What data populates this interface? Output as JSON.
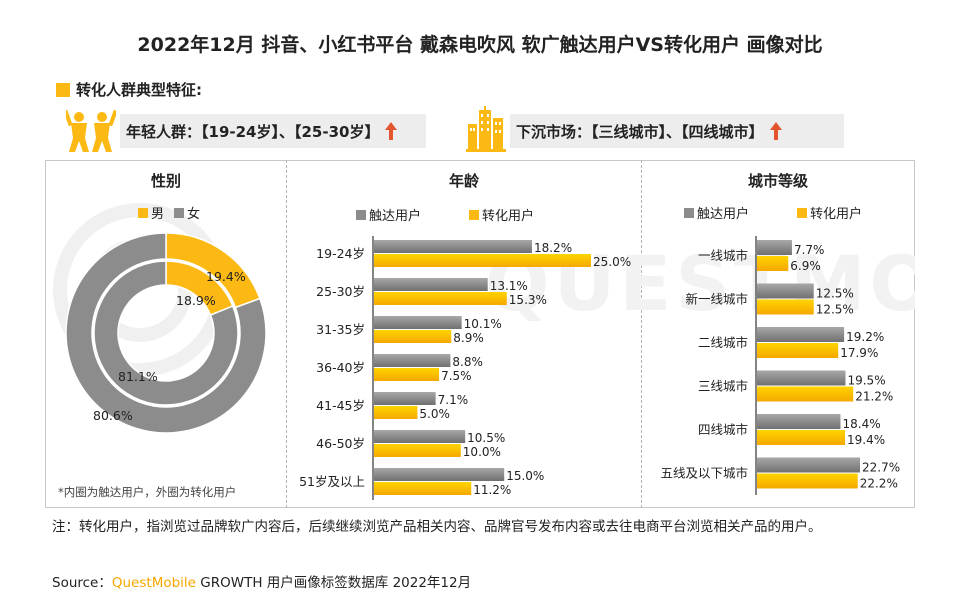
{
  "title": "2022年12月 抖音、小红书平台 戴森电吹风 软广触达用户VS转化用户 画像对比",
  "feature_heading": "转化人群典型特征:",
  "feature_left": {
    "text": "年轻人群：【19-24岁】、【25-30岁】",
    "arrow": "↑"
  },
  "feature_right": {
    "text": "下沉市场：【三线城市】、【四线城市】",
    "arrow": "↑"
  },
  "watermark": "QUESTMOBILE",
  "colors": {
    "accent": "#fdb913",
    "gray": "#8c8c8c",
    "arrow": "#e4572e"
  },
  "gender_panel": {
    "title": "性别",
    "legend": [
      "男",
      "女"
    ],
    "footnote": "*内圈为触达用户，外圈为转化用户"
  },
  "age_panel": {
    "title": "年龄",
    "legend": [
      "触达用户",
      "转化用户"
    ]
  },
  "city_panel": {
    "title": "城市等级",
    "legend": [
      "触达用户",
      "转化用户"
    ]
  },
  "chart_data": [
    {
      "type": "pie",
      "title": "性别",
      "categories": [
        "男",
        "女"
      ],
      "series": [
        {
          "values": [
            18.9,
            81.1
          ],
          "labels": [
            "18.9%",
            "81.1%"
          ]
        },
        {
          "values": [
            19.4,
            80.6
          ],
          "labels": [
            "19.4%",
            "80.6%"
          ]
        }
      ],
      "legend_position": "top"
    },
    {
      "type": "bar",
      "title": "年龄",
      "categories": [
        "19-24岁",
        "25-30岁",
        "31-35岁",
        "36-40岁",
        "41-45岁",
        "46-50岁",
        "51岁及以上"
      ],
      "series": [
        {
          "name": "触达用户",
          "values": [
            18.2,
            13.1,
            10.1,
            8.8,
            7.1,
            10.5,
            15.0
          ],
          "labels": [
            "18.2%",
            "13.1%",
            "10.1%",
            "8.8%",
            "7.1%",
            "10.5%",
            "15.0%"
          ]
        },
        {
          "name": "转化用户",
          "values": [
            25.0,
            15.3,
            8.9,
            7.5,
            5.0,
            10.0,
            11.2
          ],
          "labels": [
            "25.0%",
            "15.3%",
            "8.9%",
            "7.5%",
            "5.0%",
            "10.0%",
            "11.2%"
          ]
        }
      ],
      "xlim": [
        0,
        25
      ],
      "legend_position": "top"
    },
    {
      "type": "bar",
      "title": "城市等级",
      "categories": [
        "一线城市",
        "新一线城市",
        "二线城市",
        "三线城市",
        "四线城市",
        "五线及以下城市"
      ],
      "series": [
        {
          "name": "触达用户",
          "values": [
            7.7,
            12.5,
            19.2,
            19.5,
            18.4,
            22.7
          ],
          "labels": [
            "7.7%",
            "12.5%",
            "19.2%",
            "19.5%",
            "18.4%",
            "22.7%"
          ]
        },
        {
          "name": "转化用户",
          "values": [
            6.9,
            12.5,
            17.9,
            21.2,
            19.4,
            22.2
          ],
          "labels": [
            "6.9%",
            "12.5%",
            "17.9%",
            "21.2%",
            "19.4%",
            "22.2%"
          ]
        }
      ],
      "xlim": [
        0,
        22.7
      ],
      "legend_position": "top"
    }
  ],
  "note": "注：转化用户，指浏览过品牌软广内容后，后续继续浏览产品相关内容、品牌官号发布内容或去往电商平台浏览相关产品的用户。",
  "source": {
    "prefix": "Source：",
    "brand": "QuestMobile",
    "suffix": " GROWTH 用户画像标签数据库 2022年12月"
  }
}
